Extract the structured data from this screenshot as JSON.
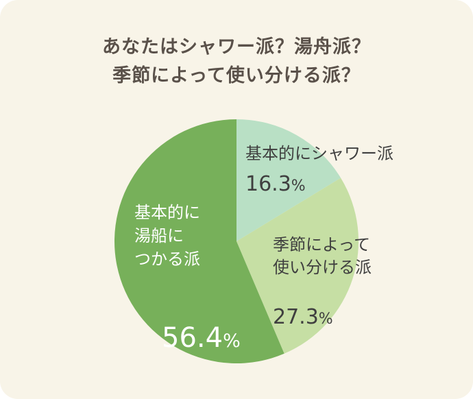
{
  "title_lines": [
    "あなたはシャワー派？湯舟派？",
    "季節によって使い分ける派？"
  ],
  "chart_data": {
    "type": "pie",
    "title": "あなたはシャワー派？湯舟派？季節によって使い分ける派？",
    "start": "top",
    "direction": "clockwise",
    "slices": [
      {
        "label_lines": [
          "基本的にシャワー派"
        ],
        "value": 16.3,
        "value_text": "16.3",
        "unit": "%",
        "color": "#b9e0c5",
        "text_color": "#3f3f3f"
      },
      {
        "label_lines": [
          "季節によって",
          "使い分ける派"
        ],
        "value": 27.3,
        "value_text": "27.3",
        "unit": "%",
        "color": "#c6dfa4",
        "text_color": "#3f3f3f"
      },
      {
        "label_lines": [
          "基本的に",
          "湯船に",
          "つかる派"
        ],
        "value": 56.4,
        "value_text": "56.4",
        "unit": "%",
        "color": "#77b05a",
        "text_color": "#ffffff"
      }
    ]
  }
}
